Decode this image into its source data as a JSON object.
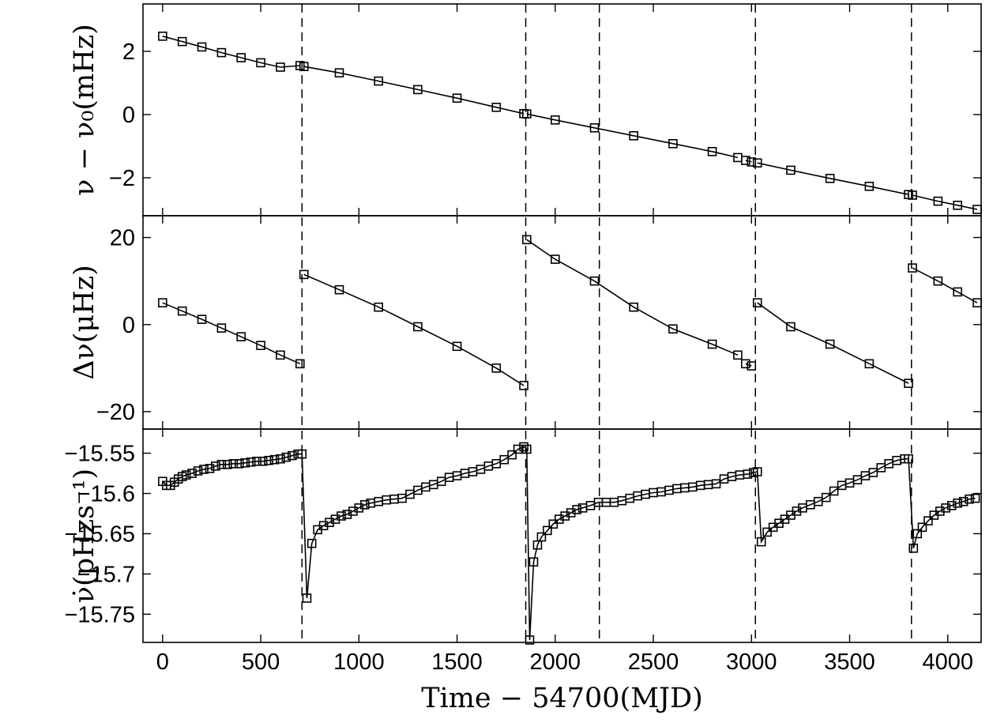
{
  "chart_data": {
    "type": "line",
    "x_axis": {
      "label": "Time − 54700(MJD)",
      "range": [
        -100,
        4170
      ],
      "ticks": [
        0,
        500,
        1000,
        1500,
        2000,
        2500,
        3000,
        3500,
        4000
      ],
      "tick_labels": [
        "0",
        "500",
        "1000",
        "1500",
        "2000",
        "2500",
        "3000",
        "3500",
        "4000"
      ]
    },
    "glitch_epochs": [
      710,
      1850,
      2225,
      3020,
      3815
    ],
    "grid": false,
    "legend": "none",
    "panels": [
      {
        "ylabel": "ν − ν₀(mHz)",
        "ylim": [
          -3.2,
          3.5
        ],
        "yticks": [
          -2,
          0,
          2
        ],
        "ytick_labels": [
          "−2",
          "0",
          "2"
        ],
        "series": [
          {
            "segments": [
              {
                "x": [
                  0,
                  100,
                  200,
                  300,
                  400,
                  500,
                  600,
                  700
                ],
                "y": [
                  2.48,
                  2.31,
                  2.14,
                  1.96,
                  1.8,
                  1.64,
                  1.5,
                  1.55
                ]
              },
              {
                "x": [
                  720,
                  900,
                  1100,
                  1300,
                  1500,
                  1700,
                  1840
                ],
                "y": [
                  1.52,
                  1.32,
                  1.06,
                  0.79,
                  0.52,
                  0.23,
                  0.03
                ]
              },
              {
                "x": [
                  1855,
                  2000,
                  2200,
                  2400,
                  2600,
                  2800,
                  2930
                ],
                "y": [
                  0.02,
                  -0.17,
                  -0.42,
                  -0.67,
                  -0.92,
                  -1.17,
                  -1.36
                ]
              },
              {
                "x": [
                  2970,
                  3000
                ],
                "y": [
                  -1.45,
                  -1.5
                ]
              },
              {
                "x": [
                  3030,
                  3200,
                  3400,
                  3600,
                  3800
                ],
                "y": [
                  -1.53,
                  -1.76,
                  -2.02,
                  -2.27,
                  -2.53
                ]
              },
              {
                "x": [
                  3820,
                  3950,
                  4050,
                  4150
                ],
                "y": [
                  -2.55,
                  -2.74,
                  -2.87,
                  -3.0
                ]
              }
            ]
          }
        ]
      },
      {
        "ylabel": "Δν(μHz)",
        "ylim": [
          -24,
          25
        ],
        "yticks": [
          -20,
          0,
          20
        ],
        "ytick_labels": [
          "−20",
          "0",
          "20"
        ],
        "series": [
          {
            "segments": [
              {
                "x": [
                  0,
                  100,
                  200,
                  300,
                  400,
                  500,
                  600,
                  700
                ],
                "y": [
                  5,
                  3.1,
                  1.2,
                  -0.8,
                  -2.8,
                  -4.8,
                  -7.0,
                  -9.0
                ]
              },
              {
                "x": [
                  720,
                  900,
                  1100,
                  1300,
                  1500,
                  1700,
                  1840
                ],
                "y": [
                  11.5,
                  8.0,
                  4.0,
                  -0.5,
                  -5.0,
                  -10.0,
                  -14.0
                ]
              },
              {
                "x": [
                  1855,
                  2000,
                  2200,
                  2400,
                  2600,
                  2800,
                  2930
                ],
                "y": [
                  19.5,
                  15.0,
                  10.0,
                  4.0,
                  -1.0,
                  -4.5,
                  -7.0
                ]
              },
              {
                "x": [
                  2970,
                  3000
                ],
                "y": [
                  -9.0,
                  -9.5
                ]
              },
              {
                "x": [
                  3030,
                  3200,
                  3400,
                  3600,
                  3800
                ],
                "y": [
                  5.0,
                  -0.5,
                  -4.5,
                  -9.0,
                  -13.5
                ]
              },
              {
                "x": [
                  3820,
                  3950,
                  4050,
                  4150
                ],
                "y": [
                  13.0,
                  10.0,
                  7.5,
                  5.0
                ]
              }
            ]
          }
        ]
      },
      {
        "ylabel": "ν̇(pHzs⁻¹)",
        "ylim": [
          -15.785,
          -15.52
        ],
        "yticks": [
          -15.75,
          -15.7,
          -15.65,
          -15.6,
          -15.55
        ],
        "ytick_labels": [
          "−15.75",
          "−15.7",
          "−15.65",
          "−15.6",
          "−15.55"
        ],
        "series": [
          {
            "segments": [
              {
                "x": [
                  0,
                  20,
                  40,
                  60,
                  80,
                  100,
                  120,
                  150,
                  180,
                  210,
                  240,
                  270,
                  300,
                  330,
                  360,
                  390,
                  420,
                  450,
                  480,
                  510,
                  540,
                  570,
                  600,
                  630,
                  660,
                  690,
                  710,
                  735,
                  760,
                  790,
                  820,
                  850,
                  880,
                  910,
                  940,
                  970,
                  1000,
                  1030,
                  1060,
                  1100,
                  1140,
                  1180,
                  1220,
                  1260,
                  1300,
                  1340,
                  1380,
                  1420,
                  1460,
                  1500,
                  1540,
                  1580,
                  1620,
                  1660,
                  1700,
                  1740,
                  1780,
                  1810,
                  1840,
                  1855,
                  1870,
                  1890,
                  1910,
                  1930,
                  1960,
                  1990,
                  2020,
                  2050,
                  2080,
                  2110,
                  2140,
                  2180,
                  2220,
                  2260,
                  2300,
                  2340,
                  2380,
                  2420,
                  2460,
                  2500,
                  2540,
                  2580,
                  2620,
                  2660,
                  2700,
                  2740,
                  2780,
                  2820,
                  2860,
                  2900,
                  2940,
                  2980,
                  3010,
                  3030,
                  3050,
                  3080,
                  3110,
                  3140,
                  3170,
                  3200,
                  3230,
                  3260,
                  3300,
                  3340,
                  3380,
                  3420,
                  3460,
                  3500,
                  3540,
                  3580,
                  3620,
                  3660,
                  3700,
                  3740,
                  3780,
                  3800,
                  3825,
                  3845,
                  3870,
                  3900,
                  3930,
                  3960,
                  3990,
                  4020,
                  4050,
                  4080,
                  4110,
                  4140
                ],
                "y": [
                  -15.585,
                  -15.59,
                  -15.59,
                  -15.586,
                  -15.582,
                  -15.579,
                  -15.577,
                  -15.575,
                  -15.572,
                  -15.57,
                  -15.569,
                  -15.566,
                  -15.564,
                  -15.564,
                  -15.563,
                  -15.563,
                  -15.562,
                  -15.561,
                  -15.56,
                  -15.56,
                  -15.559,
                  -15.558,
                  -15.557,
                  -15.555,
                  -15.553,
                  -15.551,
                  -15.551,
                  -15.73,
                  -15.662,
                  -15.645,
                  -15.64,
                  -15.636,
                  -15.632,
                  -15.628,
                  -15.626,
                  -15.622,
                  -15.618,
                  -15.614,
                  -15.612,
                  -15.61,
                  -15.608,
                  -15.607,
                  -15.606,
                  -15.601,
                  -15.596,
                  -15.592,
                  -15.589,
                  -15.585,
                  -15.58,
                  -15.578,
                  -15.575,
                  -15.573,
                  -15.57,
                  -15.566,
                  -15.563,
                  -15.558,
                  -15.552,
                  -15.545,
                  -15.542,
                  -15.545,
                  -15.782,
                  -15.685,
                  -15.664,
                  -15.654,
                  -15.646,
                  -15.638,
                  -15.632,
                  -15.628,
                  -15.624,
                  -15.62,
                  -15.618,
                  -15.615,
                  -15.611,
                  -15.611,
                  -15.611,
                  -15.609,
                  -15.606,
                  -15.603,
                  -15.601,
                  -15.599,
                  -15.598,
                  -15.596,
                  -15.594,
                  -15.593,
                  -15.592,
                  -15.59,
                  -15.589,
                  -15.588,
                  -15.582,
                  -15.579,
                  -15.577,
                  -15.576,
                  -15.574,
                  -15.573,
                  -15.66,
                  -15.648,
                  -15.642,
                  -15.637,
                  -15.632,
                  -15.627,
                  -15.622,
                  -15.618,
                  -15.614,
                  -15.61,
                  -15.605,
                  -15.597,
                  -15.59,
                  -15.587,
                  -15.583,
                  -15.578,
                  -15.574,
                  -15.568,
                  -15.563,
                  -15.559,
                  -15.557,
                  -15.557,
                  -15.668,
                  -15.65,
                  -15.642,
                  -15.634,
                  -15.627,
                  -15.622,
                  -15.618,
                  -15.615,
                  -15.612,
                  -15.61,
                  -15.607,
                  -15.606
                ]
              }
            ]
          }
        ]
      }
    ]
  }
}
